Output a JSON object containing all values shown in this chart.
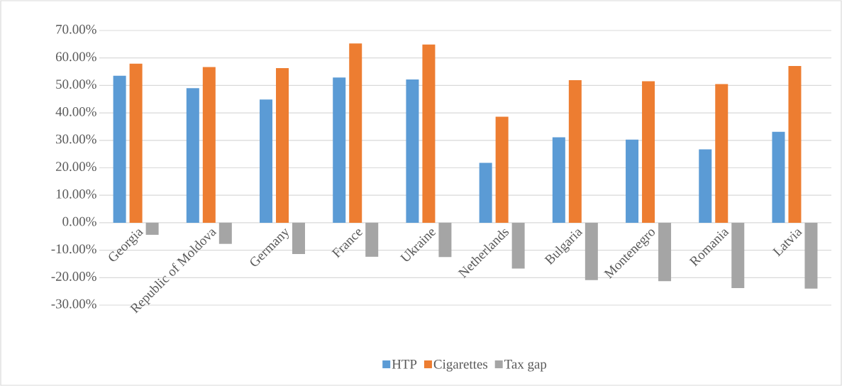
{
  "chart_data": {
    "type": "bar",
    "categories": [
      "Georgia",
      "Republic of Moldova",
      "Germany",
      "France",
      "Ukraine",
      "Netherlands",
      "Bulgaria",
      "Montenegro",
      "Romania",
      "Latvia"
    ],
    "series": [
      {
        "name": "HTP",
        "color": "#5b9bd5",
        "values": [
          53.5,
          49.0,
          44.9,
          52.9,
          52.2,
          21.8,
          31.1,
          30.3,
          26.7,
          33.1
        ]
      },
      {
        "name": "Cigarettes",
        "color": "#ed7d31",
        "values": [
          57.9,
          56.7,
          56.3,
          65.3,
          64.9,
          38.6,
          51.9,
          51.5,
          50.5,
          57.1
        ]
      },
      {
        "name": "Tax gap",
        "color": "#a5a5a5",
        "values": [
          -4.4,
          -7.7,
          -11.4,
          -12.4,
          -12.5,
          -16.7,
          -20.9,
          -21.3,
          -23.8,
          -24.0
        ]
      }
    ],
    "ylim": [
      -30,
      70
    ],
    "yticks": [
      {
        "value": -30,
        "label": "-30.00%"
      },
      {
        "value": -20,
        "label": "-20.00%"
      },
      {
        "value": -10,
        "label": "-10.00%"
      },
      {
        "value": 0,
        "label": "0.00%"
      },
      {
        "value": 10,
        "label": "10.00%"
      },
      {
        "value": 20,
        "label": "20.00%"
      },
      {
        "value": 30,
        "label": "30.00%"
      },
      {
        "value": 40,
        "label": "40.00%"
      },
      {
        "value": 50,
        "label": "50.00%"
      },
      {
        "value": 60,
        "label": "60.00%"
      },
      {
        "value": 70,
        "label": "70.00%"
      }
    ],
    "grid": "y",
    "legend": "bottom"
  }
}
